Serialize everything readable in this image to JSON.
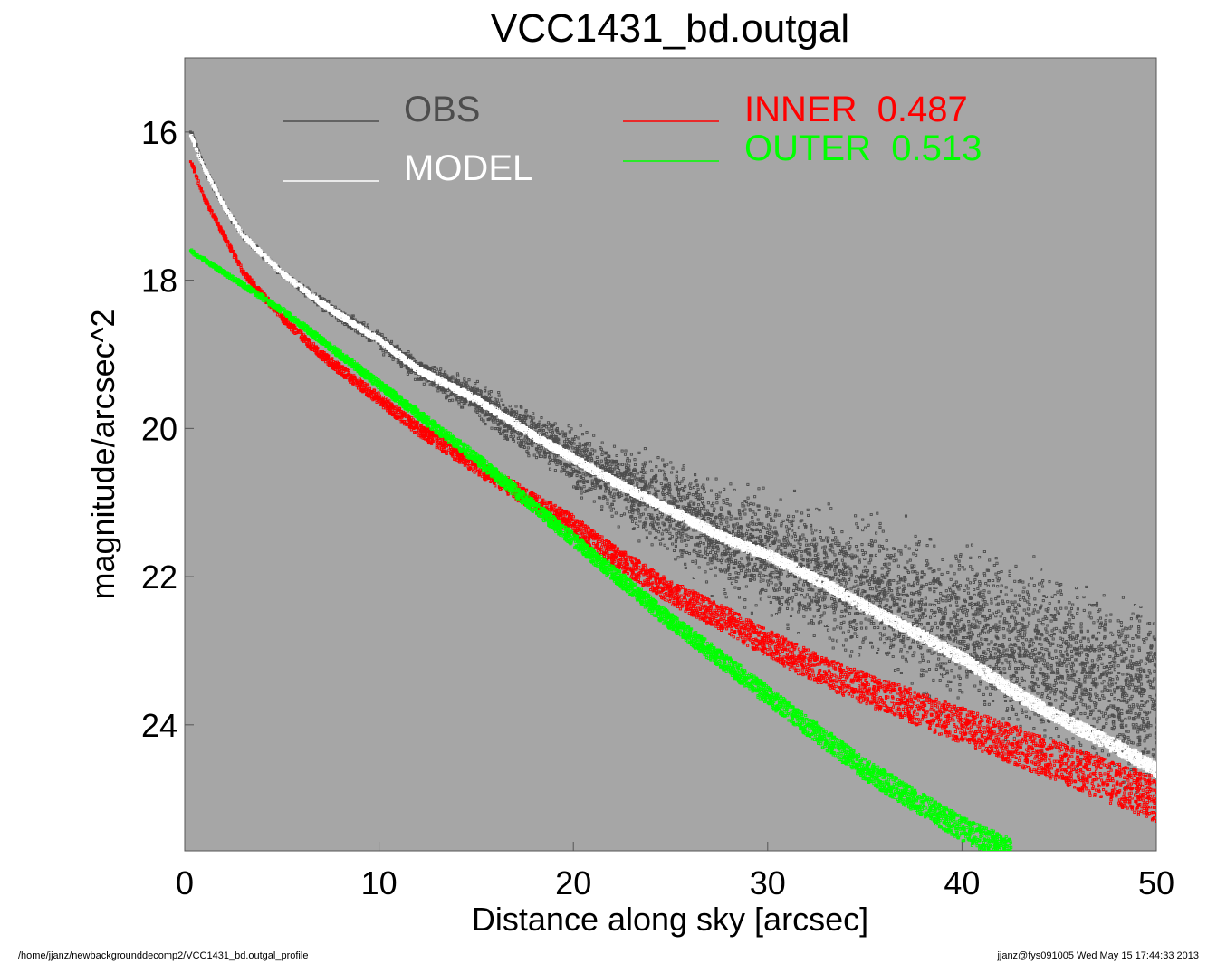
{
  "chart_data": {
    "type": "scatter",
    "title": "VCC1431_bd.outgal",
    "xlabel": "Distance along sky [arcsec]",
    "ylabel": "magnitude/arcsec^2",
    "xlim": [
      0,
      50
    ],
    "ylim": [
      25.7,
      15.0
    ],
    "y_inverted": true,
    "x_ticks": [
      0,
      10,
      20,
      30,
      40,
      50
    ],
    "y_ticks": [
      16,
      18,
      20,
      22,
      24
    ],
    "background": "#a6a6a6",
    "legend_placement": "top",
    "series": [
      {
        "name": "OBS",
        "color": "#4d4d4d",
        "x": [
          0.3,
          1,
          2,
          3,
          5,
          7,
          10,
          12,
          15,
          18,
          20,
          22,
          25,
          28,
          30,
          33,
          35,
          38,
          40,
          43,
          45,
          48,
          50
        ],
        "y": [
          16.0,
          16.5,
          17.0,
          17.4,
          17.9,
          18.3,
          18.8,
          19.2,
          19.6,
          20.1,
          20.4,
          20.7,
          21.1,
          21.5,
          21.7,
          22.0,
          22.2,
          22.5,
          22.7,
          23.0,
          23.2,
          23.5,
          23.6
        ],
        "scatter_spread": [
          0.05,
          0.05,
          0.05,
          0.05,
          0.06,
          0.1,
          0.15,
          0.2,
          0.3,
          0.4,
          0.5,
          0.6,
          0.8,
          0.9,
          1.0,
          1.1,
          1.2,
          1.3,
          1.4,
          1.5,
          1.5,
          1.6,
          1.6
        ]
      },
      {
        "name": "MODEL",
        "color": "#ffffff",
        "x": [
          0.3,
          1,
          2,
          3,
          5,
          7,
          10,
          12,
          15,
          18,
          20,
          22,
          25,
          28,
          30,
          33,
          35,
          38,
          40,
          43,
          45,
          48,
          50
        ],
        "y": [
          16.05,
          16.5,
          17.0,
          17.4,
          17.9,
          18.3,
          18.8,
          19.2,
          19.6,
          20.1,
          20.4,
          20.7,
          21.1,
          21.5,
          21.7,
          22.1,
          22.4,
          22.8,
          23.1,
          23.6,
          23.9,
          24.3,
          24.6
        ]
      },
      {
        "name": "INNER",
        "label_value": "0.487",
        "color": "#ff0000",
        "x": [
          0.3,
          1,
          2,
          3,
          4,
          5,
          7,
          10,
          12,
          15,
          18,
          20,
          22,
          25,
          28,
          30,
          33,
          35,
          38,
          40,
          43,
          45,
          48,
          50
        ],
        "y": [
          16.4,
          16.9,
          17.4,
          17.9,
          18.2,
          18.5,
          19.0,
          19.6,
          20.0,
          20.5,
          21.0,
          21.3,
          21.7,
          22.2,
          22.6,
          22.9,
          23.3,
          23.5,
          23.8,
          24.0,
          24.3,
          24.5,
          24.8,
          25.0
        ]
      },
      {
        "name": "OUTER",
        "label_value": "0.513",
        "color": "#00ff00",
        "x": [
          0.3,
          5,
          10,
          15,
          20,
          25,
          30,
          35,
          40,
          42.5
        ],
        "y": [
          17.6,
          18.4,
          19.4,
          20.4,
          21.5,
          22.6,
          23.6,
          24.6,
          25.4,
          25.7
        ]
      }
    ]
  },
  "legend": {
    "obs_label": "OBS",
    "model_label": "MODEL",
    "inner_label": "INNER  0.487",
    "outer_label": "OUTER  0.513"
  },
  "footer": {
    "path": "/home/jjanz/newbackgrounddecomp2/VCC1431_bd.outgal_profile",
    "stamp": "jjanz@fys091005  Wed May 15 17:44:33 2013"
  }
}
